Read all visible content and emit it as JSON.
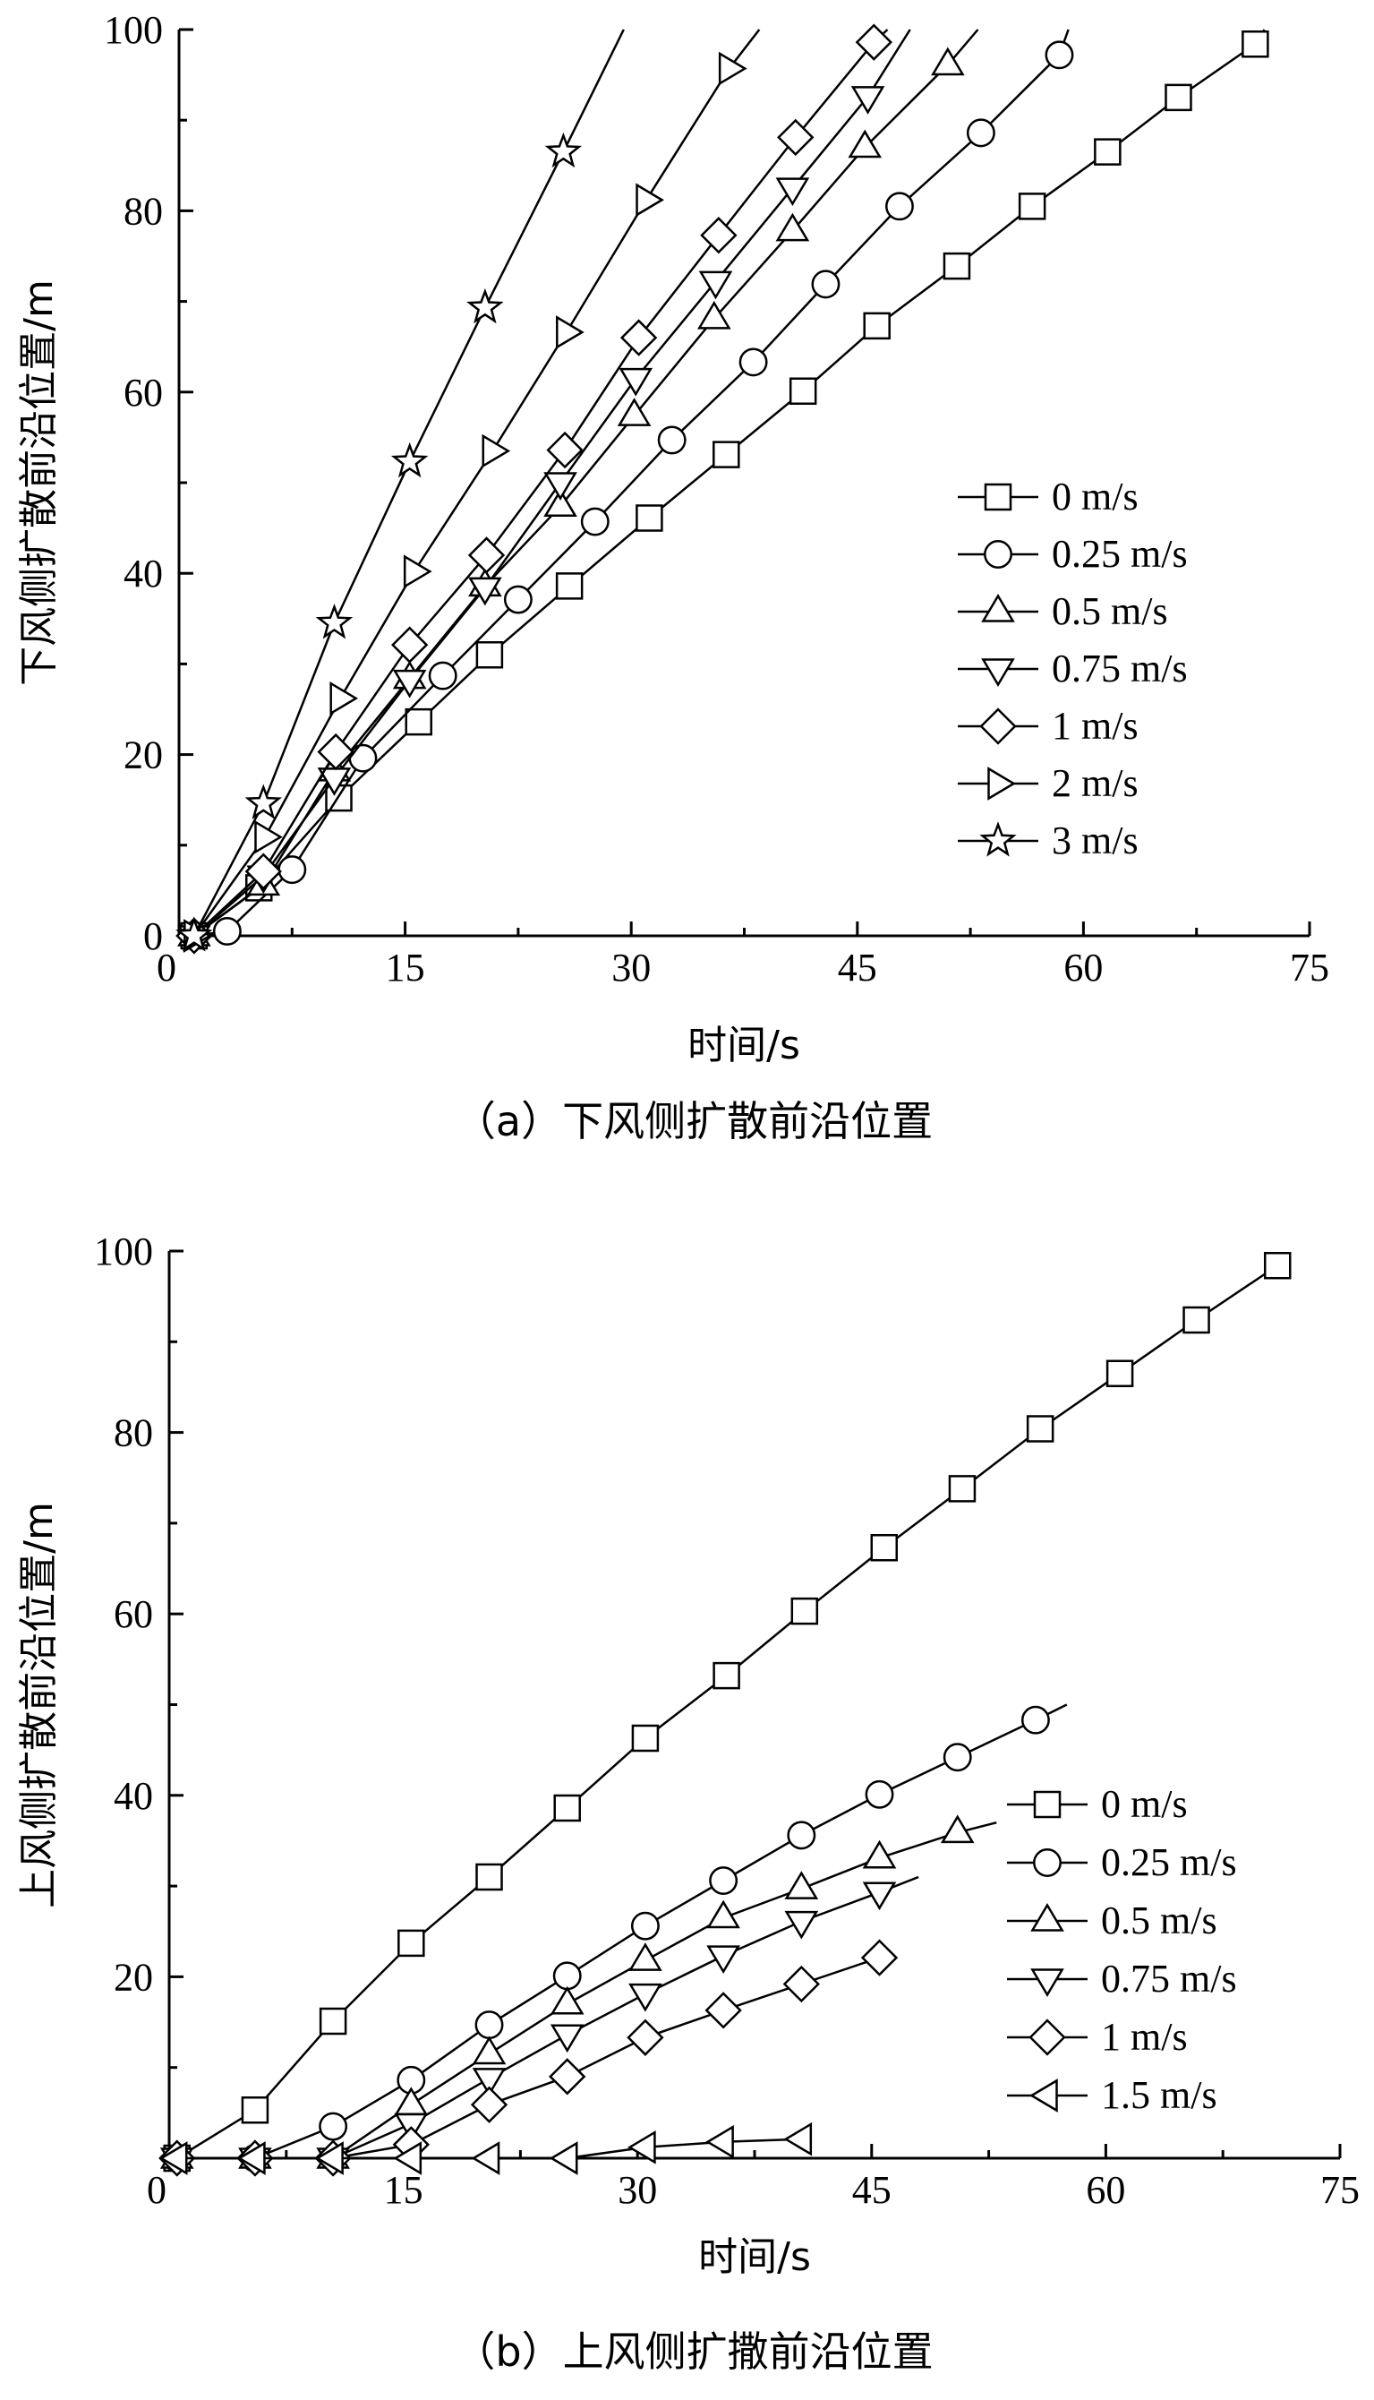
{
  "chart_data": [
    {
      "type": "line",
      "caption": "（a）下风侧扩散前沿位置",
      "xlabel": "时间/s",
      "ylabel": "下风侧扩散前沿位置/m",
      "xlim": [
        0,
        75
      ],
      "ylim": [
        0,
        100
      ],
      "xticks": [
        "0",
        "15",
        "30",
        "45",
        "60",
        "75"
      ],
      "yticks": [
        "0",
        "20",
        "40",
        "60",
        "80",
        "100"
      ],
      "legend_position": "right",
      "series": [
        {
          "name": "0 m/s",
          "marker": "square",
          "points": [
            [
              1,
              0
            ],
            [
              5.3,
              5.3
            ],
            [
              10.6,
              15.2
            ],
            [
              15.9,
              23.6
            ],
            [
              20.6,
              31
            ],
            [
              25.9,
              38.6
            ],
            [
              31.2,
              46.1
            ],
            [
              36.3,
              53.1
            ],
            [
              41.4,
              60.1
            ],
            [
              46.3,
              67.3
            ],
            [
              51.6,
              73.9
            ],
            [
              56.6,
              80.5
            ],
            [
              61.6,
              86.5
            ],
            [
              66.3,
              92.5
            ],
            [
              71.4,
              98.4
            ]
          ],
          "extend_to": [
            72,
            100
          ]
        },
        {
          "name": "0.25 m/s",
          "marker": "circle",
          "points": [
            [
              1,
              0
            ],
            [
              3.2,
              0.5
            ],
            [
              7.5,
              7.3
            ],
            [
              12.2,
              19.6
            ],
            [
              17.5,
              28.7
            ],
            [
              22.5,
              37.1
            ],
            [
              27.6,
              45.7
            ],
            [
              32.7,
              54.7
            ],
            [
              38.1,
              63.3
            ],
            [
              42.9,
              71.9
            ],
            [
              47.8,
              80.5
            ],
            [
              53.2,
              88.6
            ],
            [
              58.4,
              97.2
            ]
          ],
          "extend_to": [
            59,
            100
          ]
        },
        {
          "name": "0.5 m/s",
          "marker": "triangle-up",
          "points": [
            [
              1,
              0
            ],
            [
              5.6,
              5.6
            ],
            [
              10.3,
              18.2
            ],
            [
              15.3,
              28.4
            ],
            [
              20.3,
              38.6
            ],
            [
              25.3,
              47.4
            ],
            [
              30.2,
              57.4
            ],
            [
              35.5,
              68.1
            ],
            [
              40.7,
              77.8
            ],
            [
              45.5,
              87.0
            ],
            [
              51.0,
              96.1
            ]
          ],
          "extend_to": [
            53,
            100
          ]
        },
        {
          "name": "0.75 m/s",
          "marker": "triangle-down",
          "points": [
            [
              1,
              0
            ],
            [
              5.6,
              6.6
            ],
            [
              10.3,
              17.4
            ],
            [
              15.3,
              28.2
            ],
            [
              20.3,
              38.4
            ],
            [
              25.3,
              50.0
            ],
            [
              30.3,
              61.5
            ],
            [
              35.6,
              72.2
            ],
            [
              40.7,
              82.5
            ],
            [
              45.7,
              92.6
            ]
          ],
          "extend_to": [
            48.5,
            100
          ]
        },
        {
          "name": "1 m/s",
          "marker": "diamond",
          "points": [
            [
              1,
              0
            ],
            [
              5.6,
              7.1
            ],
            [
              10.4,
              20.3
            ],
            [
              15.3,
              32.1
            ],
            [
              20.4,
              42.0
            ],
            [
              25.6,
              53.6
            ],
            [
              30.5,
              66.0
            ],
            [
              35.8,
              77.3
            ],
            [
              40.9,
              88.1
            ],
            [
              46.1,
              98.6
            ]
          ],
          "extend_to": [
            47,
            100
          ]
        },
        {
          "name": "2 m/s",
          "marker": "triangle-right",
          "points": [
            [
              1,
              0
            ],
            [
              5.7,
              10.9
            ],
            [
              10.7,
              26.2
            ],
            [
              15.6,
              40.2
            ],
            [
              20.8,
              53.5
            ],
            [
              25.7,
              66.6
            ],
            [
              31.0,
              81.2
            ],
            [
              36.5,
              95.7
            ]
          ],
          "extend_to": [
            38.5,
            100
          ]
        },
        {
          "name": "3 m/s",
          "marker": "star",
          "points": [
            [
              1,
              0
            ],
            [
              5.6,
              14.6
            ],
            [
              10.3,
              34.5
            ],
            [
              15.3,
              52.3
            ],
            [
              20.3,
              69.3
            ],
            [
              25.5,
              86.5
            ]
          ],
          "extend_to": [
            29.5,
            100
          ]
        }
      ]
    },
    {
      "type": "line",
      "caption": "（b）上风侧扩撒前沿位置",
      "xlabel": "时间/s",
      "ylabel": "上风侧扩散前沿位置/m",
      "xlim": [
        0,
        75
      ],
      "ylim": [
        0,
        100
      ],
      "xticks": [
        "0",
        "15",
        "30",
        "45",
        "60",
        "75"
      ],
      "yticks": [
        "20",
        "40",
        "60",
        "80",
        "100"
      ],
      "legend_position": "right",
      "series": [
        {
          "name": "0 m/s",
          "marker": "square",
          "points": [
            [
              0.5,
              0
            ],
            [
              5.5,
              5.3
            ],
            [
              10.5,
              15.1
            ],
            [
              15.5,
              23.7
            ],
            [
              20.5,
              31.0
            ],
            [
              25.5,
              38.6
            ],
            [
              30.5,
              46.3
            ],
            [
              35.7,
              53.2
            ],
            [
              40.7,
              60.3
            ],
            [
              45.8,
              67.3
            ],
            [
              50.8,
              73.8
            ],
            [
              55.8,
              80.4
            ],
            [
              60.9,
              86.5
            ],
            [
              65.8,
              92.4
            ],
            [
              71.0,
              98.4
            ]
          ],
          "extend_to": null
        },
        {
          "name": "0.25 m/s",
          "marker": "circle",
          "points": [
            [
              0.5,
              0
            ],
            [
              5.5,
              0
            ],
            [
              10.5,
              3.5
            ],
            [
              15.5,
              8.6
            ],
            [
              20.5,
              14.7
            ],
            [
              25.5,
              20.1
            ],
            [
              30.5,
              25.6
            ],
            [
              35.5,
              30.6
            ],
            [
              40.5,
              35.6
            ],
            [
              45.5,
              40.1
            ],
            [
              50.5,
              44.2
            ],
            [
              55.5,
              48.3
            ]
          ],
          "extend_to": [
            57.5,
            50
          ]
        },
        {
          "name": "0.5 m/s",
          "marker": "triangle-up",
          "points": [
            [
              0.5,
              0
            ],
            [
              5.5,
              0
            ],
            [
              10.5,
              0
            ],
            [
              15.5,
              5.9
            ],
            [
              20.5,
              11.5
            ],
            [
              25.5,
              17.0
            ],
            [
              30.5,
              21.8
            ],
            [
              35.5,
              26.5
            ],
            [
              40.5,
              29.7
            ],
            [
              45.5,
              33.1
            ],
            [
              50.5,
              35.9
            ]
          ],
          "extend_to": [
            53,
            37
          ]
        },
        {
          "name": "0.75 m/s",
          "marker": "triangle-down",
          "points": [
            [
              0.5,
              0
            ],
            [
              5.5,
              0
            ],
            [
              10.5,
              0
            ],
            [
              15.5,
              3.8
            ],
            [
              20.5,
              8.8
            ],
            [
              25.5,
              13.6
            ],
            [
              30.5,
              18.1
            ],
            [
              35.5,
              22.3
            ],
            [
              40.5,
              26.1
            ],
            [
              45.5,
              29.3
            ]
          ],
          "extend_to": [
            48,
            31
          ]
        },
        {
          "name": "1 m/s",
          "marker": "diamond",
          "points": [
            [
              0.5,
              0
            ],
            [
              5.5,
              0
            ],
            [
              10.5,
              0
            ],
            [
              15.5,
              1.5
            ],
            [
              20.5,
              5.9
            ],
            [
              25.5,
              9.0
            ],
            [
              30.5,
              13.3
            ],
            [
              35.5,
              16.3
            ],
            [
              40.5,
              19.2
            ],
            [
              45.5,
              22.1
            ]
          ],
          "extend_to": null
        },
        {
          "name": "1.5 m/s",
          "marker": "triangle-left",
          "points": [
            [
              0.5,
              0
            ],
            [
              5.5,
              0
            ],
            [
              10.5,
              0
            ],
            [
              15.5,
              0
            ],
            [
              20.5,
              0
            ],
            [
              25.5,
              0
            ],
            [
              30.5,
              1.2
            ],
            [
              35.5,
              1.8
            ],
            [
              40.5,
              2.1
            ]
          ],
          "extend_to": null
        }
      ]
    }
  ]
}
